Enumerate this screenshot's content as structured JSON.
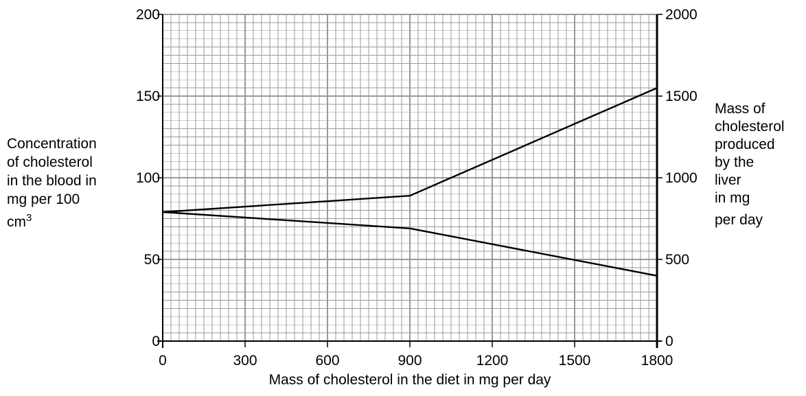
{
  "chart_data": {
    "type": "line",
    "title": "",
    "xlabel": "Mass of cholesterol in the diet in mg per day",
    "ylabel_left_lines": [
      "Concentration",
      "of cholesterol",
      "in the blood in",
      "mg per 100",
      "cm"
    ],
    "ylabel_left_superscript": "3",
    "ylabel_right_lines": [
      "Mass of",
      "cholesterol",
      "produced",
      "by the",
      "liver",
      "in mg",
      "per day"
    ],
    "xlim": [
      0,
      1800
    ],
    "ylim_left": [
      0,
      200
    ],
    "ylim_right": [
      0,
      2000
    ],
    "x_ticks": [
      "0",
      "300",
      "600",
      "900",
      "1200",
      "1500",
      "1800"
    ],
    "y_ticks_left": [
      "0",
      "50",
      "100",
      "150",
      "200"
    ],
    "y_ticks_right": [
      "0",
      "500",
      "1000",
      "1500",
      "2000"
    ],
    "grid": true,
    "series": [
      {
        "axis": "right",
        "x": [
          0,
          900,
          1800
        ],
        "y": [
          790,
          890,
          1550
        ]
      },
      {
        "axis": "left",
        "x": [
          0,
          900,
          1800
        ],
        "y": [
          79,
          69,
          40
        ]
      }
    ],
    "line_color": "#000000",
    "grid_color": "#999999"
  }
}
